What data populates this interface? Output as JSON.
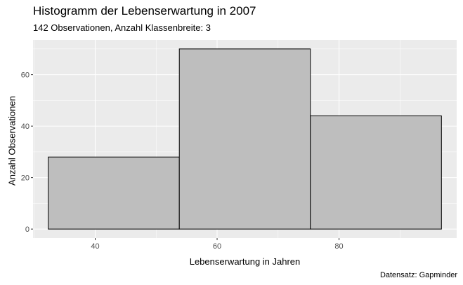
{
  "chart_data": {
    "type": "bar",
    "title": "Histogramm der Lebenserwartung in 2007",
    "subtitle": "142 Observationen, Anzahl Klassenbreite: 3",
    "xlabel": "Lebenserwartung in Jahren",
    "ylabel": "Anzahl Observationen",
    "caption": "Datensatz: Gapminder",
    "bins": [
      {
        "start": 32.3,
        "end": 53.8,
        "count": 28
      },
      {
        "start": 53.8,
        "end": 75.3,
        "count": 70
      },
      {
        "start": 75.3,
        "end": 96.8,
        "count": 44
      }
    ],
    "xlim": [
      29.8,
      99.3
    ],
    "ylim": [
      -3.5,
      73.5
    ],
    "x_ticks": [
      40,
      60,
      80
    ],
    "y_ticks": [
      0,
      20,
      40,
      60
    ],
    "grid": true,
    "colors": {
      "panel_background": "#ebebeb",
      "grid_major": "#ffffff",
      "bar_fill": "#bebebe",
      "bar_stroke": "#000000"
    }
  }
}
